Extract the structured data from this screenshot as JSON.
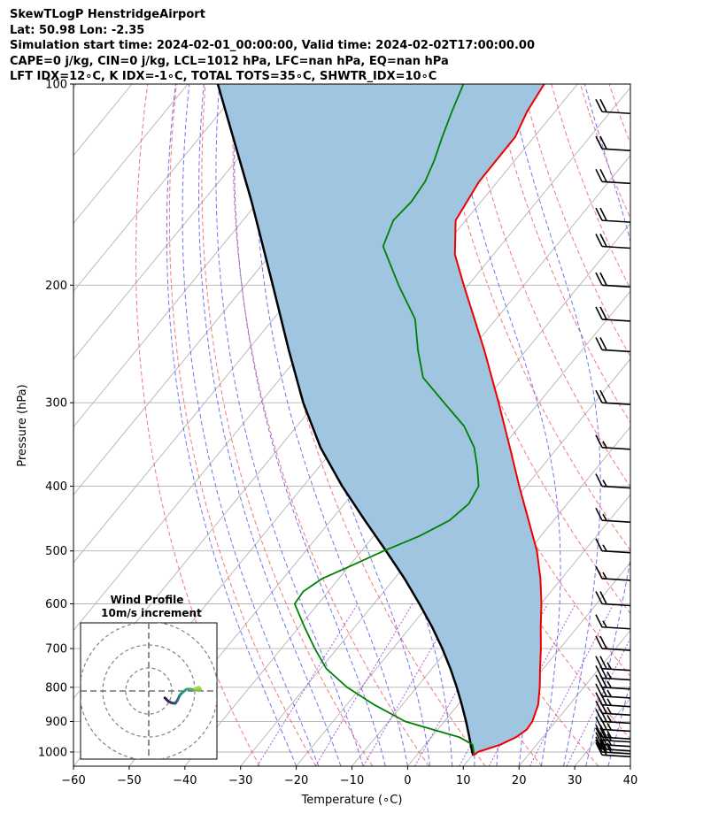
{
  "header": {
    "line1": "SkewTLogP HenstridgeAirport",
    "line2": "Lat: 50.98   Lon: -2.35",
    "line3": "Simulation start time: 2024-02-01_00:00:00, Valid time: 2024-02-02T17:00:00.00",
    "line4": "CAPE=0 j/kg, CIN=0 j/kg, LCL=1012 hPa, LFC=nan hPa, EQ=nan hPa",
    "line5": "LFT IDX=12∘C, K IDX=-1∘C, TOTAL TOTS=35∘C, SHWTR_IDX=10∘C"
  },
  "chart_data": {
    "type": "line",
    "subtype": "skew-t log-p",
    "xlabel": "Temperature (∘C)",
    "ylabel": "Pressure (hPa)",
    "xlim": [
      -60,
      40
    ],
    "ylim": [
      1050,
      100
    ],
    "x_ticks": [
      -60,
      -50,
      -40,
      -30,
      -20,
      -10,
      0,
      10,
      20,
      30,
      40
    ],
    "x_tick_labels": [
      "−60",
      "−50",
      "−40",
      "−30",
      "−20",
      "−10",
      "0",
      "10",
      "20",
      "30",
      "40"
    ],
    "y_ticks": [
      1000,
      900,
      800,
      700,
      600,
      500,
      400,
      300,
      200,
      100
    ],
    "y_tick_labels": [
      "1000",
      "900",
      "800",
      "700",
      "600",
      "500",
      "400",
      "300",
      "200",
      "100"
    ],
    "colors": {
      "temperature": "#ee0000",
      "dewpoint": "#008000",
      "parcel": "#000000",
      "cin_shading": "#9fc5e0",
      "dry_adiabats": "#f06060",
      "moist_adiabats": "#5a5af0",
      "mixing_ratio": "#9b30c8",
      "isotherms": "#b3b3b3",
      "isobars": "#b3b3b3"
    },
    "series": [
      {
        "name": "Temperature",
        "pressure": [
          1012,
          1000,
          975,
          950,
          925,
          900,
          850,
          800,
          750,
          700,
          650,
          600,
          550,
          500,
          450,
          400,
          350,
          300,
          250,
          200,
          180,
          160,
          140,
          120,
          110,
          100
        ],
        "values": [
          10.2,
          10.5,
          13.5,
          15.2,
          16.0,
          15.8,
          14.4,
          12.1,
          9.4,
          6.6,
          3.4,
          0.1,
          -3.8,
          -8.5,
          -14.5,
          -21.2,
          -28.6,
          -37.2,
          -47.6,
          -60.8,
          -66.9,
          -71.8,
          -73.3,
          -73.4,
          -75.0,
          -76.0
        ]
      },
      {
        "name": "Dewpoint",
        "pressure": [
          1012,
          1000,
          975,
          950,
          925,
          900,
          850,
          800,
          750,
          700,
          650,
          600,
          575,
          550,
          525,
          500,
          475,
          450,
          425,
          400,
          375,
          350,
          325,
          300,
          275,
          250,
          225,
          200,
          175,
          160,
          150,
          140,
          130,
          120,
          110,
          100
        ],
        "values": [
          10.2,
          9.8,
          8.5,
          5.0,
          -1.0,
          -7.0,
          -15.0,
          -22.5,
          -29.0,
          -34.0,
          -39.0,
          -44.2,
          -44.5,
          -43.0,
          -39.5,
          -36.0,
          -31.8,
          -28.7,
          -27.7,
          -28.5,
          -31.5,
          -35.0,
          -40.0,
          -47.0,
          -54.5,
          -59.5,
          -64.5,
          -72.5,
          -81.0,
          -83.0,
          -82.5,
          -83.0,
          -84.5,
          -86.5,
          -88.5,
          -90.5
        ]
      },
      {
        "name": "Parcel profile",
        "pressure": [
          1012,
          1000,
          950,
          900,
          850,
          800,
          750,
          700,
          650,
          600,
          550,
          500,
          450,
          400,
          350,
          300,
          250,
          200,
          150,
          100
        ],
        "values": [
          10.2,
          9.5,
          6.8,
          3.9,
          0.7,
          -2.8,
          -6.7,
          -11.1,
          -16.1,
          -21.8,
          -28.2,
          -35.6,
          -43.9,
          -53.0,
          -62.6,
          -72.3,
          -82.7,
          -95.1,
          -111.2,
          -134.6
        ]
      }
    ],
    "wind_barbs": {
      "pressure": [
        1010,
        1000,
        990,
        975,
        960,
        950,
        925,
        900,
        875,
        850,
        825,
        800,
        775,
        750,
        700,
        650,
        600,
        550,
        500,
        450,
        400,
        350,
        300,
        250,
        225,
        200,
        175,
        160,
        140,
        125,
        110
      ],
      "speed_kt": [
        20,
        25,
        25,
        25,
        25,
        25,
        25,
        25,
        25,
        25,
        25,
        25,
        25,
        25,
        20,
        15,
        20,
        15,
        15,
        15,
        15,
        15,
        20,
        20,
        20,
        20,
        20,
        20,
        20,
        20,
        20
      ]
    },
    "hodograph": {
      "title": "Wind Profile",
      "subtitle": "10m/s increment",
      "rings_ms": [
        10,
        20,
        30
      ],
      "u": [
        7.0,
        7.5,
        8.5,
        10.0,
        11.5,
        12.5,
        13.5,
        14.8,
        16.5,
        18.0,
        20.0,
        21.5,
        22.5,
        21.8,
        20.0
      ],
      "v": [
        -3.0,
        -3.5,
        -4.5,
        -5.2,
        -5.4,
        -4.0,
        -1.8,
        -0.5,
        0.8,
        0.8,
        0.5,
        0.3,
        0.7,
        1.6,
        1.0
      ]
    }
  }
}
